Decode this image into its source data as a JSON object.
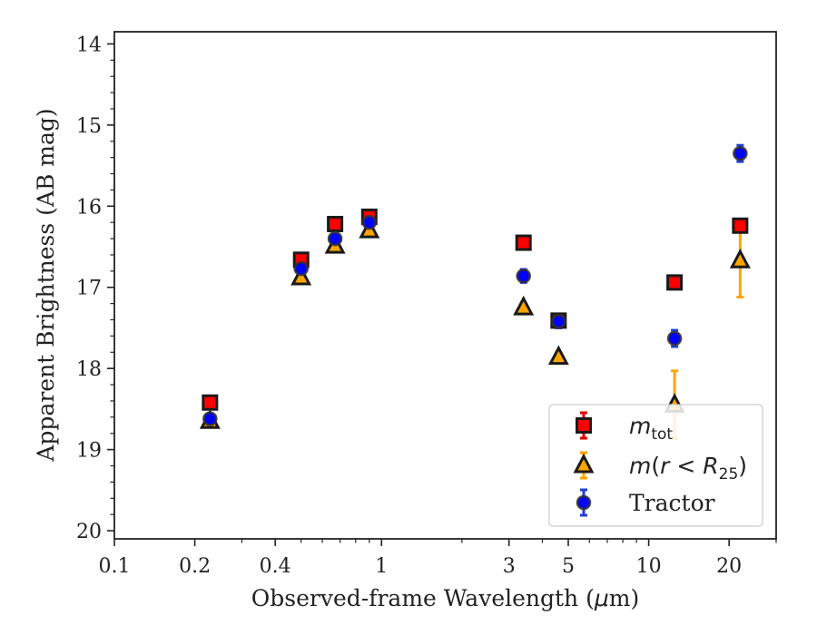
{
  "chart_data": {
    "type": "scatter",
    "xscale": "log",
    "yinverted": true,
    "xlim": [
      0.1,
      30
    ],
    "ylim": [
      20.1,
      13.85
    ],
    "xlabel_pre": "Observed-frame Wavelength (",
    "xlabel_mu": "μ",
    "xlabel_post": "m)",
    "ylabel": "Apparent Brightness (AB mag)",
    "xticks": [
      {
        "v": 0.1,
        "label": "0.1"
      },
      {
        "v": 0.2,
        "label": "0.2"
      },
      {
        "v": 0.4,
        "label": "0.4"
      },
      {
        "v": 1,
        "label": "1"
      },
      {
        "v": 3,
        "label": "3"
      },
      {
        "v": 5,
        "label": "5"
      },
      {
        "v": 10,
        "label": "10"
      },
      {
        "v": 20,
        "label": "20"
      }
    ],
    "yticks": [
      {
        "v": 14,
        "label": "14"
      },
      {
        "v": 15,
        "label": "15"
      },
      {
        "v": 16,
        "label": "16"
      },
      {
        "v": 17,
        "label": "17"
      },
      {
        "v": 18,
        "label": "18"
      },
      {
        "v": 19,
        "label": "19"
      },
      {
        "v": 20,
        "label": "20"
      }
    ],
    "legend": {
      "position": "lower right",
      "entries": [
        {
          "series": 0,
          "m": "m",
          "sub": "tot"
        },
        {
          "series": 1,
          "m": "m",
          "paren_open": "(",
          "r": "r",
          "lt": " < ",
          "R": "R",
          "sub": "25",
          "paren_close": ")"
        },
        {
          "series": 2,
          "text": "Tractor"
        }
      ]
    },
    "series": [
      {
        "marker": "square",
        "face_color": "#ff0000",
        "edge_color": "#1a1a1a",
        "err_color": "#dd0000",
        "points": [
          {
            "x": 0.228,
            "y": 18.42,
            "err": 0.03
          },
          {
            "x": 0.5,
            "y": 16.66,
            "err": 0.06
          },
          {
            "x": 0.67,
            "y": 16.22,
            "err": 0.06
          },
          {
            "x": 0.9,
            "y": 16.13,
            "err": 0.06
          },
          {
            "x": 3.4,
            "y": 16.45,
            "err": 0.04
          },
          {
            "x": 4.6,
            "y": 17.41,
            "err": 0.05
          },
          {
            "x": 12.5,
            "y": 16.94,
            "err": 0.05
          },
          {
            "x": 22.0,
            "y": 16.24,
            "err": 0.05
          }
        ]
      },
      {
        "marker": "triangle",
        "face_color": "#ffa500",
        "edge_color": "#1a1a1a",
        "err_color": "#ffa500",
        "points": [
          {
            "x": 0.228,
            "y": 18.65,
            "err": 0.03
          },
          {
            "x": 0.5,
            "y": 16.88,
            "err": 0.03
          },
          {
            "x": 0.67,
            "y": 16.49,
            "err": 0.03
          },
          {
            "x": 0.9,
            "y": 16.3,
            "err": 0.03
          },
          {
            "x": 3.4,
            "y": 17.25,
            "err": 0.03
          },
          {
            "x": 4.6,
            "y": 17.86,
            "err": 0.03
          },
          {
            "x": 12.5,
            "y": 18.45,
            "err": 0.42
          },
          {
            "x": 22.0,
            "y": 16.67,
            "err": 0.45
          }
        ]
      },
      {
        "marker": "circle",
        "face_color": "#0000ff",
        "edge_color": "#333333",
        "err_color": "#1f3fd6",
        "points": [
          {
            "x": 0.228,
            "y": 18.62,
            "err": 0.03
          },
          {
            "x": 0.5,
            "y": 16.77,
            "err": 0.04
          },
          {
            "x": 0.67,
            "y": 16.4,
            "err": 0.04
          },
          {
            "x": 0.9,
            "y": 16.2,
            "err": 0.04
          },
          {
            "x": 3.4,
            "y": 16.86,
            "err": 0.08
          },
          {
            "x": 4.6,
            "y": 17.42,
            "err": 0.08
          },
          {
            "x": 12.5,
            "y": 17.63,
            "err": 0.1
          },
          {
            "x": 22.0,
            "y": 15.35,
            "err": 0.1
          }
        ]
      }
    ]
  }
}
